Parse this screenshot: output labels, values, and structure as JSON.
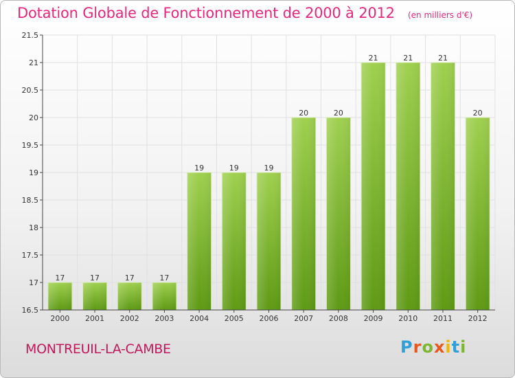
{
  "header": {
    "title": "Dotation Globale de Fonctionnement de 2000 à 2012",
    "unit": "(en milliers d'€)"
  },
  "footer": {
    "commune": "MONTREUIL-LA-CAMBE",
    "logo": "Proxiti"
  },
  "colors": {
    "accent": "#e8267c",
    "bar_top": "#9fd04f",
    "bar_bottom": "#5e9a14",
    "axis": "#444444",
    "grid": "#e0e0e0"
  },
  "chart_data": {
    "type": "bar",
    "title": "Dotation Globale de Fonctionnement de 2000 à 2012",
    "subtitle": "(en milliers d'€)",
    "categories": [
      "2000",
      "2001",
      "2002",
      "2003",
      "2004",
      "2005",
      "2006",
      "2007",
      "2008",
      "2009",
      "2010",
      "2011",
      "2012"
    ],
    "values": [
      17,
      17,
      17,
      17,
      19,
      19,
      19,
      20,
      20,
      21,
      21,
      21,
      20
    ],
    "data_labels": [
      "17",
      "17",
      "17",
      "17",
      "19",
      "19",
      "19",
      "20",
      "20",
      "21",
      "21",
      "21",
      "20"
    ],
    "ylim": [
      16.5,
      21.5
    ],
    "yticks": [
      "16.5",
      "17",
      "17.5",
      "18",
      "18.5",
      "19",
      "19.5",
      "20",
      "20.5",
      "21",
      "21.5"
    ],
    "xlabel": "",
    "ylabel": "",
    "grid": true,
    "legend": "none"
  }
}
